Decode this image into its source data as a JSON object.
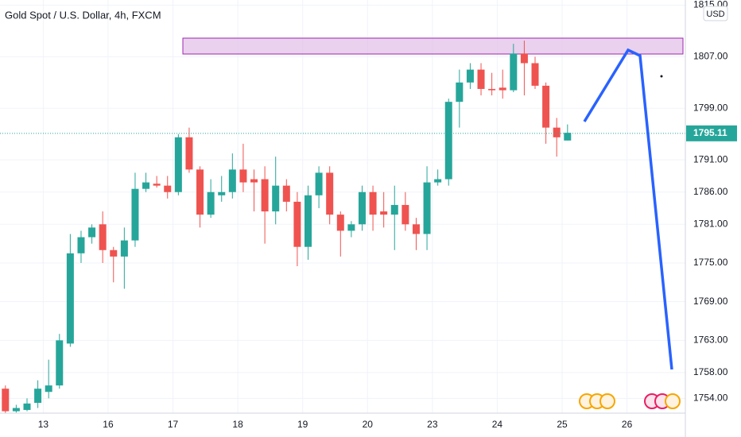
{
  "chart_data": {
    "type": "candlestick",
    "title": "Gold Spot / U.S. Dollar, 4h, FXCM",
    "currency": "USD",
    "up_color": "#26a69a",
    "down_color": "#ef5350",
    "open": [
      1755.5,
      1752,
      1752.2,
      1753.3,
      1755,
      1756,
      1762.5,
      1776.5,
      1779,
      1781,
      1777,
      1776,
      1778.5,
      1786.5,
      1787.3,
      1787,
      1786,
      1794.5,
      1789.5,
      1782.5,
      1785.5,
      1786,
      1789.5,
      1788,
      1788,
      1783,
      1787,
      1784.5,
      1777.5,
      1785.5,
      1789,
      1782.5,
      1780,
      1781,
      1786,
      1783,
      1782.5,
      1784,
      1781,
      1779.5,
      1787.5,
      1788,
      1800,
      1803,
      1805,
      1802,
      1802.2,
      1801.8,
      1807.5,
      1806,
      1802.5,
      1796,
      1794
    ],
    "high": [
      1756,
      1753,
      1754,
      1756.8,
      1760,
      1764,
      1779.5,
      1780,
      1781,
      1783,
      1777.5,
      1780.5,
      1789,
      1789,
      1788.5,
      1788.5,
      1795,
      1796,
      1790,
      1788,
      1788.5,
      1792,
      1793.5,
      1789.5,
      1790,
      1791.5,
      1788,
      1786,
      1787,
      1790,
      1790,
      1783,
      1781.5,
      1787,
      1787,
      1786,
      1787,
      1786,
      1782,
      1790,
      1789.5,
      1800.5,
      1805,
      1806,
      1806,
      1804.5,
      1805,
      1809,
      1809.5,
      1807,
      1803,
      1797.5,
      1796.5
    ],
    "low": [
      1751.7,
      1751.8,
      1752,
      1752.5,
      1754,
      1755.5,
      1762,
      1775,
      1778,
      1775,
      1772,
      1771,
      1777.5,
      1786,
      1786.7,
      1785,
      1785.5,
      1789,
      1780.5,
      1782,
      1784.5,
      1785,
      1786,
      1783,
      1778,
      1781,
      1783,
      1774.5,
      1775.5,
      1783.5,
      1781,
      1776,
      1779,
      1780,
      1780,
      1780.5,
      1777,
      1780,
      1777,
      1777,
      1787,
      1787,
      1796,
      1802,
      1801,
      1801,
      1800.5,
      1801.5,
      1801,
      1802,
      1793.5,
      1791.5,
      1794
    ],
    "close": [
      1752,
      1752.5,
      1753.2,
      1755.5,
      1756,
      1763,
      1776.5,
      1779,
      1780.5,
      1777,
      1776,
      1778.5,
      1786.5,
      1787.5,
      1787,
      1786,
      1794.5,
      1789.5,
      1782.5,
      1786,
      1786,
      1789.5,
      1787.5,
      1787.5,
      1783,
      1787,
      1784.5,
      1777.5,
      1785.5,
      1789,
      1782.5,
      1780,
      1781,
      1786,
      1782.5,
      1782.5,
      1784,
      1781,
      1779.5,
      1787.5,
      1788,
      1800,
      1803,
      1805,
      1802,
      1801.8,
      1801.8,
      1807.5,
      1806,
      1802.5,
      1796,
      1794.5,
      1795.2
    ],
    "last_price": 1795.11,
    "xlim": [
      -0.5,
      62.9
    ],
    "xticks": [
      {
        "value": 3.5,
        "label": "13"
      },
      {
        "value": 9.5,
        "label": "16"
      },
      {
        "value": 15.5,
        "label": "17"
      },
      {
        "value": 21.5,
        "label": "18"
      },
      {
        "value": 27.5,
        "label": "19"
      },
      {
        "value": 33.5,
        "label": "20"
      },
      {
        "value": 39.5,
        "label": "23"
      },
      {
        "value": 45.5,
        "label": "24"
      },
      {
        "value": 51.5,
        "label": "25"
      },
      {
        "value": 57.5,
        "label": "26"
      }
    ],
    "ylim": [
      1751.7,
      1815.8
    ],
    "yticks": [
      {
        "value": 1815,
        "label": "1815.00"
      },
      {
        "value": 1807,
        "label": "1807.00"
      },
      {
        "value": 1799,
        "label": "1799.00"
      },
      {
        "value": 1791,
        "label": "1791.00"
      },
      {
        "value": 1786,
        "label": "1786.00"
      },
      {
        "value": 1781,
        "label": "1781.00"
      },
      {
        "value": 1775,
        "label": "1775.00"
      },
      {
        "value": 1769,
        "label": "1769.00"
      },
      {
        "value": 1763,
        "label": "1763.00"
      },
      {
        "value": 1758,
        "label": "1758.00"
      },
      {
        "value": 1754,
        "label": "1754.00"
      }
    ],
    "grid": true
  }
}
